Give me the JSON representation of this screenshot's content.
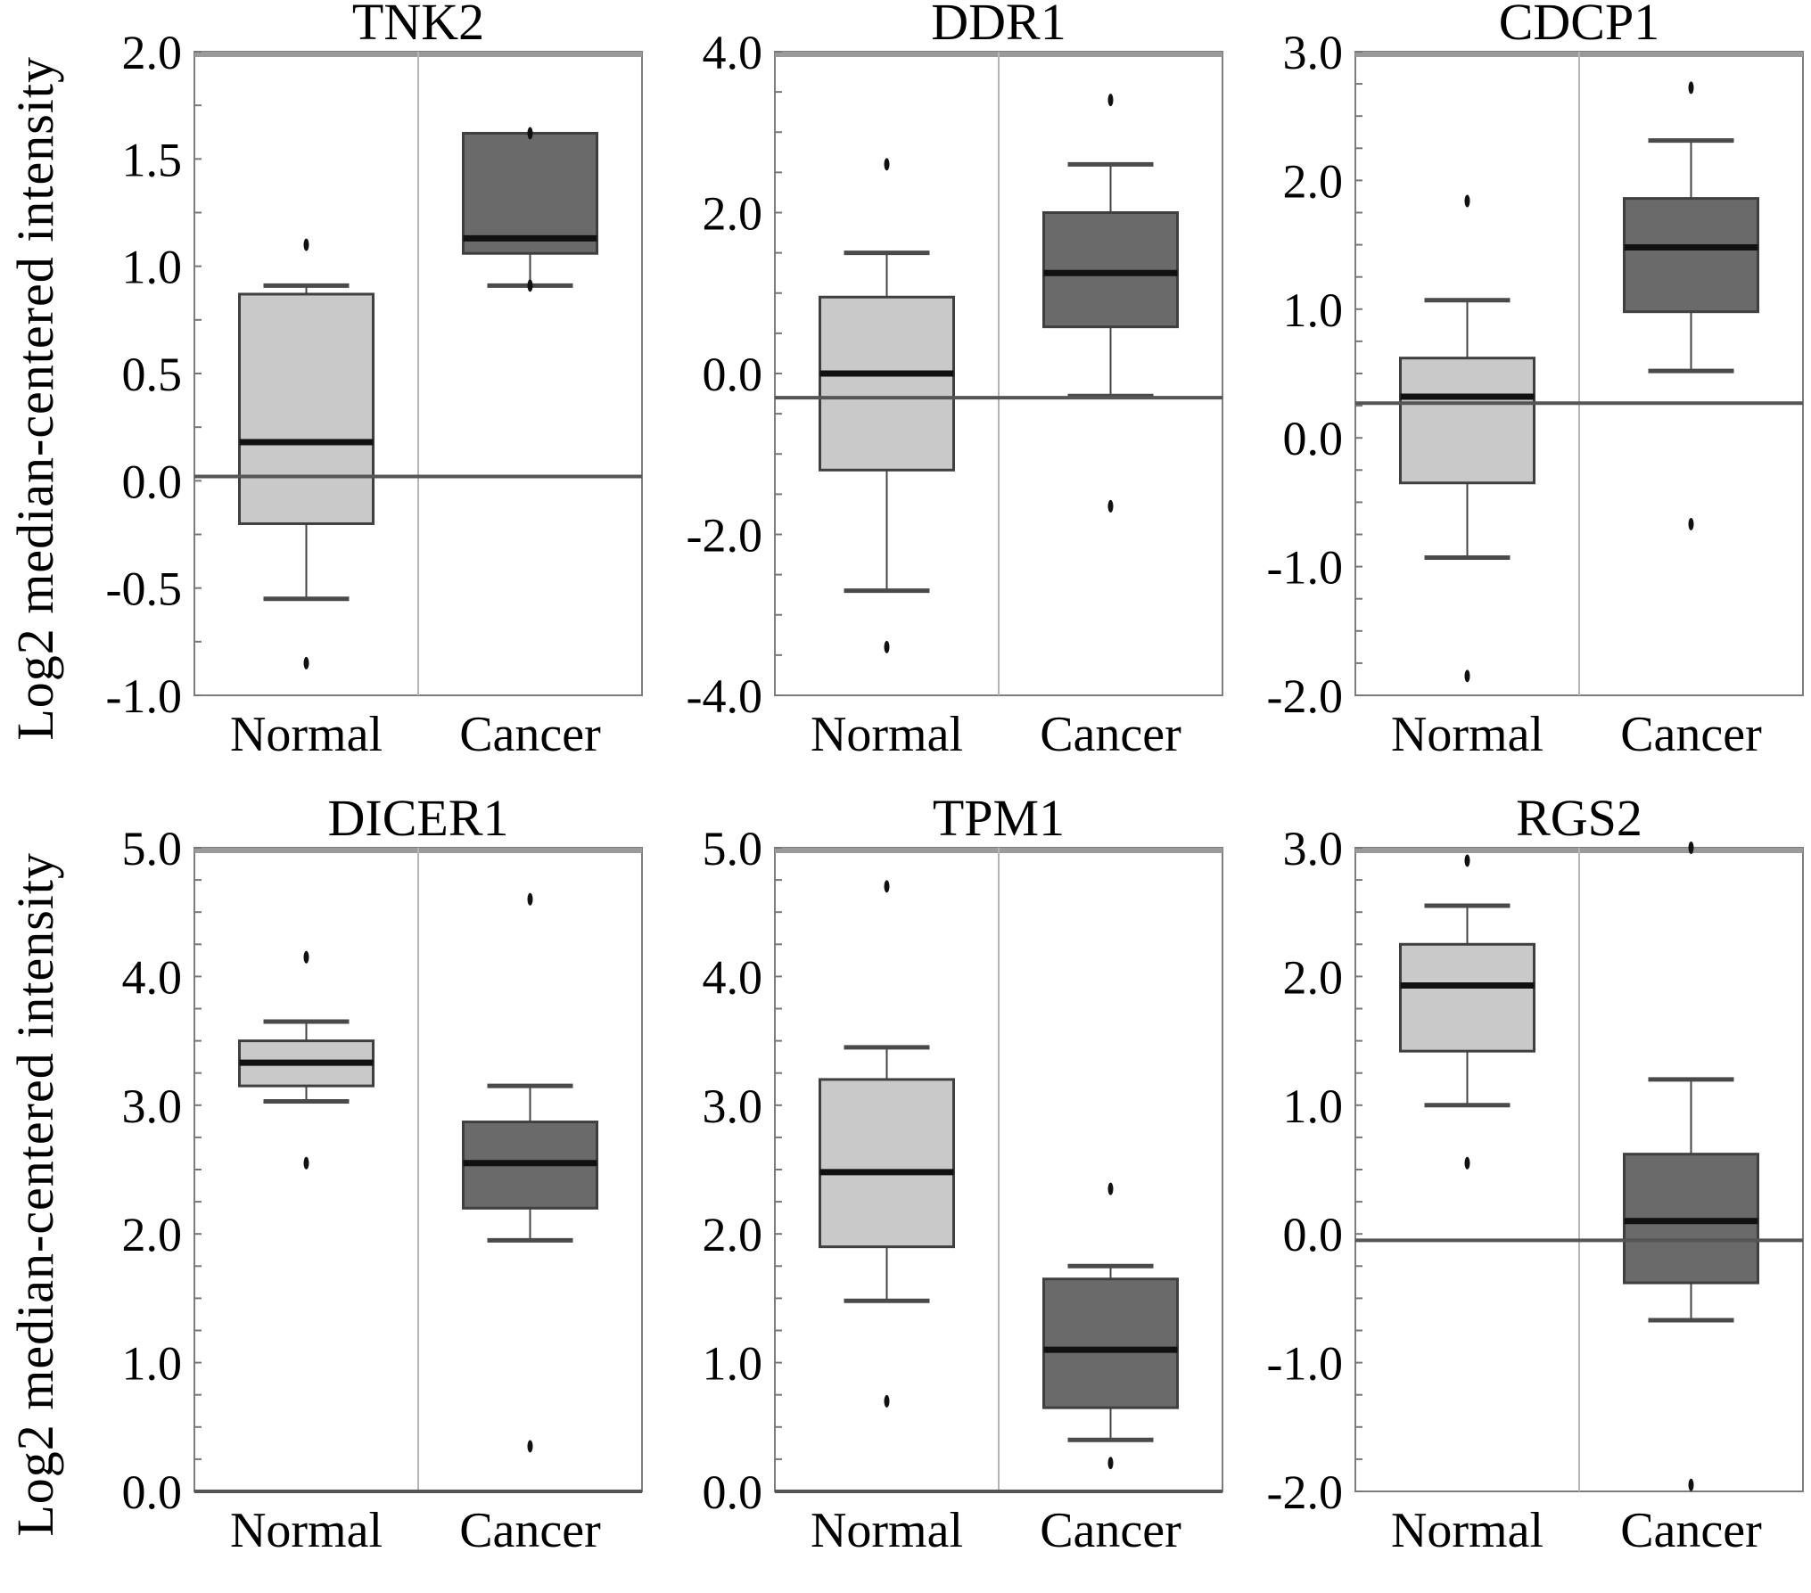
{
  "figure": {
    "ylabel": "Log2 median-centered intensity",
    "categories": [
      "Normal",
      "Cancer"
    ],
    "colors": {
      "background": "#ffffff",
      "normal_box": "#c9c9c9",
      "cancer_box": "#6a6a6a",
      "box_stroke": "#3f3f3f",
      "median": "#111111",
      "whisker": "#444444",
      "whisker_cap": "#4a4a4a",
      "reference_line": "#555555",
      "panel_border": "#7d7d7d",
      "panel_top_band": "#9a9a9a",
      "divider": "#b5b5b5",
      "outlier": "#111111"
    }
  },
  "chart_data": [
    {
      "type": "boxplot",
      "title": "TNK2",
      "ylim": [
        -1.0,
        2.0
      ],
      "yticks": [
        "2.0",
        "1.5",
        "1.0",
        "0.5",
        "0.0",
        "-0.5",
        "-1.0"
      ],
      "categories": [
        "Normal",
        "Cancer"
      ],
      "ref_line": 0.02,
      "series": [
        {
          "name": "Normal",
          "whisker_low": -0.55,
          "q1": -0.2,
          "median": 0.18,
          "q3": 0.87,
          "whisker_high": 0.91,
          "outliers": [
            1.1,
            -0.85
          ]
        },
        {
          "name": "Cancer",
          "whisker_low": 0.91,
          "q1": 1.06,
          "median": 1.13,
          "q3": 1.62,
          "whisker_high": 1.62,
          "outliers": [
            1.62,
            0.91
          ]
        }
      ]
    },
    {
      "type": "boxplot",
      "title": "DDR1",
      "ylim": [
        -4.0,
        4.0
      ],
      "yticks": [
        "4.0",
        "2.0",
        "0.0",
        "-2.0",
        "-4.0"
      ],
      "categories": [
        "Normal",
        "Cancer"
      ],
      "ref_line": -0.3,
      "series": [
        {
          "name": "Normal",
          "whisker_low": -2.7,
          "q1": -1.2,
          "median": 0.0,
          "q3": 0.95,
          "whisker_high": 1.5,
          "outliers": [
            2.6,
            -3.4
          ]
        },
        {
          "name": "Cancer",
          "whisker_low": -0.28,
          "q1": 0.58,
          "median": 1.25,
          "q3": 2.0,
          "whisker_high": 2.6,
          "outliers": [
            3.4,
            -1.65
          ]
        }
      ]
    },
    {
      "type": "boxplot",
      "title": "CDCP1",
      "ylim": [
        -2.0,
        3.0
      ],
      "yticks": [
        "3.0",
        "2.0",
        "1.0",
        "0.0",
        "-1.0",
        "-2.0"
      ],
      "categories": [
        "Normal",
        "Cancer"
      ],
      "ref_line": 0.27,
      "series": [
        {
          "name": "Normal",
          "whisker_low": -0.93,
          "q1": -0.35,
          "median": 0.32,
          "q3": 0.62,
          "whisker_high": 1.07,
          "outliers": [
            1.84,
            -1.85
          ]
        },
        {
          "name": "Cancer",
          "whisker_low": 0.52,
          "q1": 0.98,
          "median": 1.48,
          "q3": 1.86,
          "whisker_high": 2.31,
          "outliers": [
            2.72,
            -0.67
          ]
        }
      ]
    },
    {
      "type": "boxplot",
      "title": "DICER1",
      "ylim": [
        0.0,
        5.0
      ],
      "yticks": [
        "5.0",
        "4.0",
        "3.0",
        "2.0",
        "1.0",
        "0.0"
      ],
      "categories": [
        "Normal",
        "Cancer"
      ],
      "ref_line": 0.0,
      "series": [
        {
          "name": "Normal",
          "whisker_low": 3.03,
          "q1": 3.15,
          "median": 3.33,
          "q3": 3.5,
          "whisker_high": 3.65,
          "outliers": [
            4.15,
            2.55
          ]
        },
        {
          "name": "Cancer",
          "whisker_low": 1.95,
          "q1": 2.2,
          "median": 2.55,
          "q3": 2.87,
          "whisker_high": 3.15,
          "outliers": [
            4.6,
            0.35
          ]
        }
      ]
    },
    {
      "type": "boxplot",
      "title": "TPM1",
      "ylim": [
        0.0,
        5.0
      ],
      "yticks": [
        "5.0",
        "4.0",
        "3.0",
        "2.0",
        "1.0",
        "0.0"
      ],
      "categories": [
        "Normal",
        "Cancer"
      ],
      "ref_line": 0.0,
      "series": [
        {
          "name": "Normal",
          "whisker_low": 1.48,
          "q1": 1.9,
          "median": 2.48,
          "q3": 3.2,
          "whisker_high": 3.45,
          "outliers": [
            4.7,
            0.7
          ]
        },
        {
          "name": "Cancer",
          "whisker_low": 0.4,
          "q1": 0.65,
          "median": 1.1,
          "q3": 1.65,
          "whisker_high": 1.75,
          "outliers": [
            2.35,
            0.22
          ]
        }
      ]
    },
    {
      "type": "boxplot",
      "title": "RGS2",
      "ylim": [
        -2.0,
        3.0
      ],
      "yticks": [
        "3.0",
        "2.0",
        "1.0",
        "0.0",
        "-1.0",
        "-2.0"
      ],
      "categories": [
        "Normal",
        "Cancer"
      ],
      "ref_line": -0.05,
      "series": [
        {
          "name": "Normal",
          "whisker_low": 1.0,
          "q1": 1.42,
          "median": 1.93,
          "q3": 2.25,
          "whisker_high": 2.55,
          "outliers": [
            2.9,
            0.55
          ]
        },
        {
          "name": "Cancer",
          "whisker_low": -0.67,
          "q1": -0.38,
          "median": 0.1,
          "q3": 0.62,
          "whisker_high": 1.2,
          "outliers": [
            3.0,
            -1.95
          ]
        }
      ]
    }
  ]
}
